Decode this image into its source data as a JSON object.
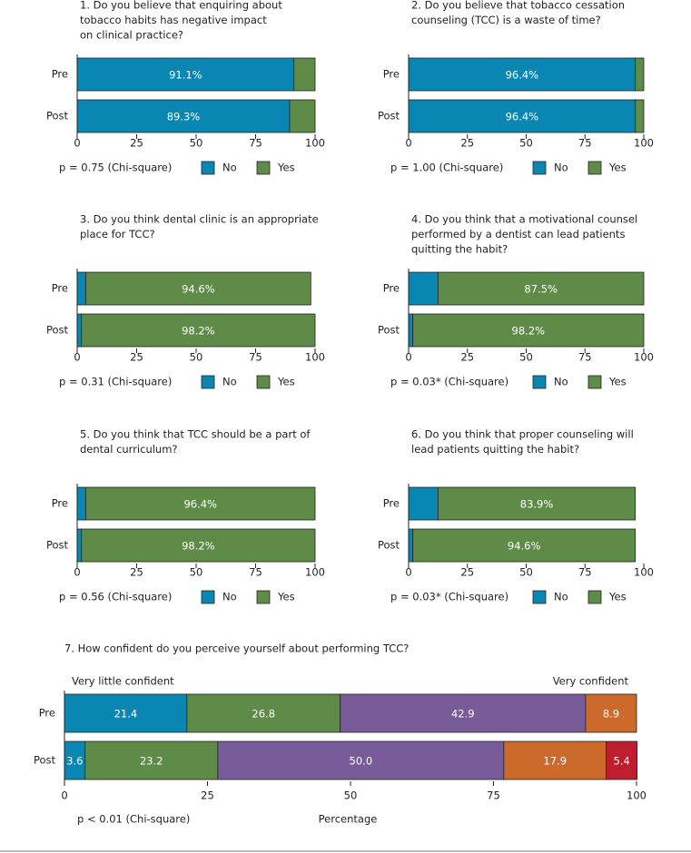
{
  "chart_data": [
    {
      "type": "bar",
      "orientation": "horizontal",
      "stacked": true,
      "title": [
        "1. Do you believe that enquiring about",
        "tobacco habits has negative impact",
        "on clinical practice?"
      ],
      "categories": [
        "Pre",
        "Post"
      ],
      "series": [
        {
          "name": "No",
          "color": "#0a86b3",
          "values": [
            91.1,
            89.3
          ],
          "value_labels": [
            "91.1%",
            "89.3%"
          ]
        },
        {
          "name": "Yes",
          "color": "#5f8b48",
          "values": [
            8.9,
            10.7
          ],
          "value_labels": [
            null,
            null
          ]
        }
      ],
      "xlim": [
        0,
        100
      ],
      "xticks": [
        0,
        25,
        50,
        75,
        100
      ],
      "note": "p = 0.75 (Chi-square)",
      "legend": "bottom"
    },
    {
      "type": "bar",
      "orientation": "horizontal",
      "stacked": true,
      "title": [
        "2. Do you believe that tobacco cessation",
        "counseling (TCC) is a waste of time?"
      ],
      "categories": [
        "Pre",
        "Post"
      ],
      "series": [
        {
          "name": "No",
          "color": "#0a86b3",
          "values": [
            96.4,
            96.4
          ],
          "value_labels": [
            "96.4%",
            "96.4%"
          ]
        },
        {
          "name": "Yes",
          "color": "#5f8b48",
          "values": [
            3.6,
            3.6
          ],
          "value_labels": [
            null,
            null
          ]
        }
      ],
      "xlim": [
        0,
        100
      ],
      "xticks": [
        0,
        25,
        50,
        75,
        100
      ],
      "note": "p = 1.00 (Chi-square)",
      "legend": "bottom"
    },
    {
      "type": "bar",
      "orientation": "horizontal",
      "stacked": true,
      "title": [
        "3. Do you think dental clinic is an appropriate",
        "place for TCC?"
      ],
      "categories": [
        "Pre",
        "Post"
      ],
      "series": [
        {
          "name": "No",
          "color": "#0a86b3",
          "values": [
            3.6,
            1.8
          ],
          "value_labels": [
            null,
            null
          ]
        },
        {
          "name": "Yes",
          "color": "#5f8b48",
          "values": [
            94.6,
            98.2
          ],
          "value_labels": [
            "94.6%",
            "98.2%"
          ]
        }
      ],
      "xlim": [
        0,
        100
      ],
      "xticks": [
        0,
        25,
        50,
        75,
        100
      ],
      "note": "p = 0.31 (Chi-square)",
      "legend": "bottom"
    },
    {
      "type": "bar",
      "orientation": "horizontal",
      "stacked": true,
      "title": [
        "4. Do you think that a motivational counsel",
        "performed by a dentist can lead patients",
        "quitting the habit?"
      ],
      "categories": [
        "Pre",
        "Post"
      ],
      "series": [
        {
          "name": "No",
          "color": "#0a86b3",
          "values": [
            12.5,
            1.8
          ],
          "value_labels": [
            null,
            null
          ]
        },
        {
          "name": "Yes",
          "color": "#5f8b48",
          "values": [
            87.5,
            98.2
          ],
          "value_labels": [
            "87.5%",
            "98.2%"
          ]
        }
      ],
      "xlim": [
        0,
        100
      ],
      "xticks": [
        0,
        25,
        50,
        75,
        100
      ],
      "note": "p = 0.03* (Chi-square)",
      "legend": "bottom"
    },
    {
      "type": "bar",
      "orientation": "horizontal",
      "stacked": true,
      "title": [
        "5. Do you think that TCC should be a part of",
        "dental curriculum?"
      ],
      "categories": [
        "Pre",
        "Post"
      ],
      "series": [
        {
          "name": "No",
          "color": "#0a86b3",
          "values": [
            3.6,
            1.8
          ],
          "value_labels": [
            null,
            null
          ]
        },
        {
          "name": "Yes",
          "color": "#5f8b48",
          "values": [
            96.4,
            98.2
          ],
          "value_labels": [
            "96.4%",
            "98.2%"
          ]
        }
      ],
      "xlim": [
        0,
        100
      ],
      "xticks": [
        0,
        25,
        50,
        75,
        100
      ],
      "note": "p = 0.56 (Chi-square)",
      "legend": "bottom"
    },
    {
      "type": "bar",
      "orientation": "horizontal",
      "stacked": true,
      "title": [
        "6. Do you think that proper counseling will",
        "lead patients quitting the habit?"
      ],
      "categories": [
        "Pre",
        "Post"
      ],
      "series": [
        {
          "name": "No",
          "color": "#0a86b3",
          "values": [
            12.5,
            1.8
          ],
          "value_labels": [
            null,
            null
          ]
        },
        {
          "name": "Yes",
          "color": "#5f8b48",
          "values": [
            83.9,
            94.6
          ],
          "value_labels": [
            "83.9%",
            "94.6%"
          ]
        }
      ],
      "xlim": [
        0,
        100
      ],
      "xticks": [
        0,
        25,
        50,
        75,
        100
      ],
      "note": "p = 0.03* (Chi-square)",
      "legend": "bottom"
    },
    {
      "type": "bar",
      "orientation": "horizontal",
      "stacked": true,
      "title": [
        "7. How confident do you perceive yourself about performing TCC?"
      ],
      "categories": [
        "Pre",
        "Post"
      ],
      "series": [
        {
          "color": "#0a86b3",
          "values": [
            21.4,
            3.6
          ]
        },
        {
          "color": "#5f8b48",
          "values": [
            26.8,
            23.2
          ]
        },
        {
          "color": "#785c99",
          "values": [
            42.9,
            50
          ],
          "value_labels": [
            "42.9",
            "50.0"
          ]
        },
        {
          "color": "#cc6a2c",
          "values": [
            8.9,
            17.9
          ]
        },
        {
          "color": "#be1e2d",
          "values": [
            null,
            5.4
          ]
        }
      ],
      "xlim": [
        0,
        100
      ],
      "xticks": [
        0,
        25,
        50,
        75,
        100
      ],
      "left_label": "Very little confident",
      "right_label": "Very confident",
      "xlabel": "Percentage",
      "note": "p < 0.01 (Chi-square)"
    }
  ]
}
